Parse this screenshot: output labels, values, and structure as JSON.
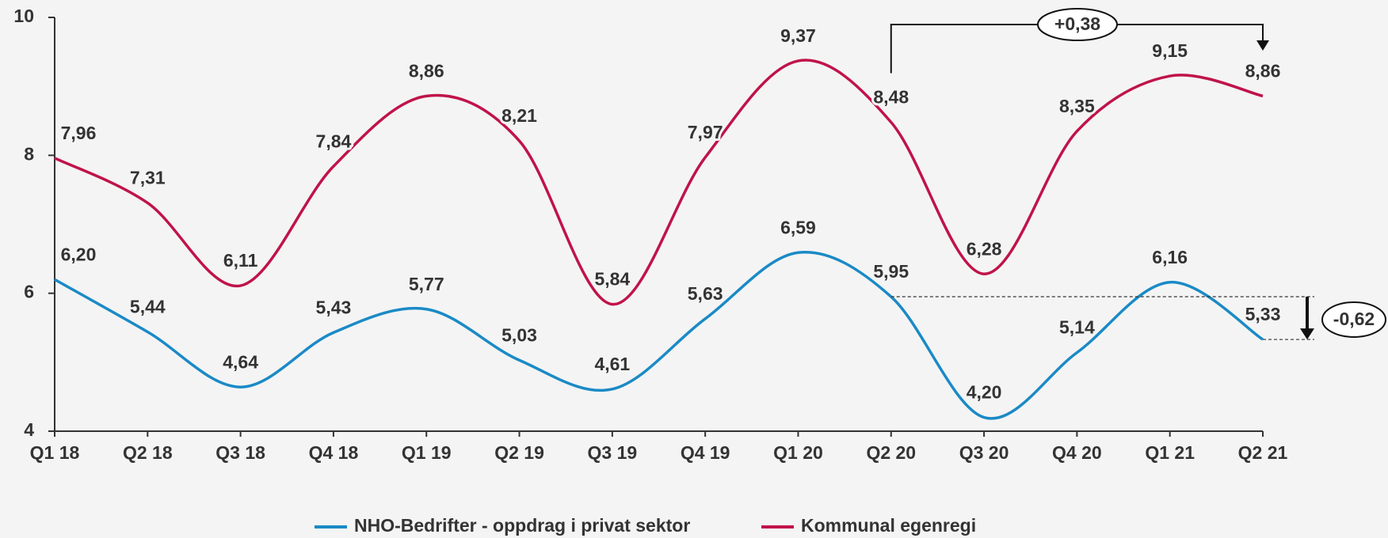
{
  "chart_data": {
    "type": "line",
    "categories": [
      "Q1 18",
      "Q2 18",
      "Q3 18",
      "Q4 18",
      "Q1 19",
      "Q2 19",
      "Q3 19",
      "Q4 19",
      "Q1 20",
      "Q2 20",
      "Q3 20",
      "Q4 20",
      "Q1 21",
      "Q2 21"
    ],
    "series": [
      {
        "name": "NHO-Bedrifter - oppdrag i privat sektor",
        "color": "#1a8ac6",
        "values": [
          6.2,
          5.44,
          4.64,
          5.43,
          5.77,
          5.03,
          4.61,
          5.63,
          6.59,
          5.95,
          4.2,
          5.14,
          6.16,
          5.33
        ],
        "value_labels": [
          "6,20",
          "5,44",
          "4,64",
          "5,43",
          "5,77",
          "5,03",
          "4,61",
          "5,63",
          "6,59",
          "5,95",
          "4,20",
          "5,14",
          "6,16",
          "5,33"
        ]
      },
      {
        "name": "Kommunal egenregi",
        "color": "#c0134a",
        "values": [
          7.96,
          7.31,
          6.11,
          7.84,
          8.86,
          8.21,
          5.84,
          7.97,
          9.37,
          8.48,
          6.28,
          8.35,
          9.15,
          8.86
        ],
        "value_labels": [
          "7,96",
          "7,31",
          "6,11",
          "7,84",
          "8,86",
          "8,21",
          "5,84",
          "7,97",
          "9,37",
          "8,48",
          "6,28",
          "8,35",
          "9,15",
          "8,86"
        ]
      }
    ],
    "ylim": [
      4,
      10
    ],
    "yticks": [
      4,
      6,
      8,
      10
    ],
    "legend": "bottom",
    "annotations": [
      "+0,38",
      "-0,62"
    ]
  }
}
